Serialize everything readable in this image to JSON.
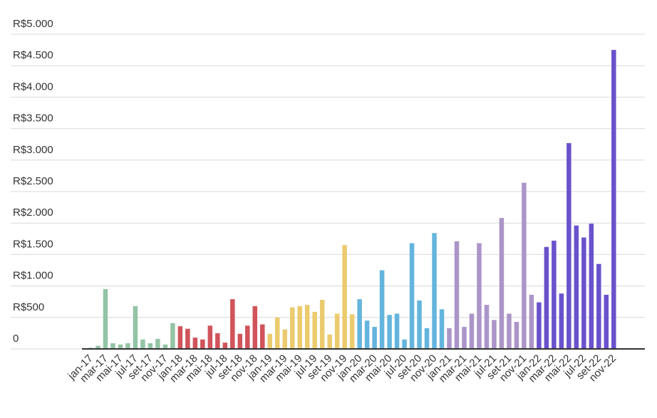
{
  "chart_data": {
    "type": "bar",
    "categories": [
      "jan-17",
      null,
      "mar-17",
      null,
      "mai-17",
      null,
      "jul-17",
      null,
      "set-17",
      null,
      "nov-17",
      null,
      "jan-18",
      null,
      "mar-18",
      null,
      "mai-18",
      null,
      "jul-18",
      null,
      "set-18",
      null,
      "nov-18",
      null,
      "jan-19",
      null,
      "mar-19",
      null,
      "mai-19",
      null,
      "jul-19",
      null,
      "set-19",
      null,
      "nov-19",
      null,
      "jan-20",
      null,
      "mar-20",
      null,
      "mai-20",
      null,
      "jul-20",
      null,
      "set-20",
      null,
      "nov-20",
      null,
      "jan-21",
      null,
      "mar-21",
      null,
      "mai-21",
      null,
      "jul-21",
      null,
      "set-21",
      null,
      "nov-21",
      null,
      "jan-22",
      null,
      "mar-22",
      null,
      "mai-22",
      null,
      "jul-22",
      null,
      "set-22",
      null,
      "nov-22"
    ],
    "values": [
      20,
      50,
      950,
      90,
      70,
      90,
      680,
      150,
      90,
      160,
      70,
      410,
      360,
      320,
      180,
      150,
      370,
      250,
      100,
      790,
      240,
      370,
      680,
      390,
      240,
      500,
      310,
      660,
      680,
      700,
      590,
      780,
      230,
      560,
      1650,
      550,
      790,
      450,
      350,
      1250,
      540,
      560,
      150,
      1680,
      770,
      330,
      1840,
      630,
      330,
      1710,
      350,
      560,
      1680,
      700,
      460,
      2080,
      560,
      430,
      2640,
      860,
      740,
      1620,
      1720,
      880,
      3270,
      1960,
      1770,
      1990,
      1350,
      860,
      4750
    ],
    "colors": [
      "#93c4a5",
      "#93c4a5",
      "#93c4a5",
      "#93c4a5",
      "#93c4a5",
      "#93c4a5",
      "#93c4a5",
      "#93c4a5",
      "#93c4a5",
      "#93c4a5",
      "#93c4a5",
      "#93c4a5",
      "#d0545a",
      "#d0545a",
      "#d0545a",
      "#d0545a",
      "#d0545a",
      "#d0545a",
      "#d0545a",
      "#d0545a",
      "#d0545a",
      "#d0545a",
      "#d0545a",
      "#d0545a",
      "#ebcb6e",
      "#ebcb6e",
      "#ebcb6e",
      "#ebcb6e",
      "#ebcb6e",
      "#ebcb6e",
      "#ebcb6e",
      "#ebcb6e",
      "#ebcb6e",
      "#ebcb6e",
      "#ebcb6e",
      "#ebcb6e",
      "#64b5dd",
      "#64b5dd",
      "#64b5dd",
      "#64b5dd",
      "#64b5dd",
      "#64b5dd",
      "#64b5dd",
      "#64b5dd",
      "#64b5dd",
      "#64b5dd",
      "#64b5dd",
      "#64b5dd",
      "#ab95c8",
      "#ab95c8",
      "#ab95c8",
      "#ab95c8",
      "#ab95c8",
      "#ab95c8",
      "#ab95c8",
      "#ab95c8",
      "#ab95c8",
      "#ab95c8",
      "#ab95c8",
      "#ab95c8",
      "#6a52cc",
      "#6a52cc",
      "#6a52cc",
      "#6a52cc",
      "#6a52cc",
      "#6a52cc",
      "#6a52cc",
      "#6a52cc",
      "#6a52cc",
      "#6a52cc",
      "#6a52cc"
    ],
    "ylim": [
      0,
      5000
    ],
    "yticks": [
      0,
      {
        "value": 500,
        "label": "R$500"
      },
      {
        "value": 1000,
        "label": "R$1.000"
      },
      {
        "value": 1500,
        "label": "R$1.500"
      },
      {
        "value": 2000,
        "label": "R$2.000"
      },
      {
        "value": 2500,
        "label": "R$2.500"
      },
      {
        "value": 3000,
        "label": "R$3.000"
      },
      {
        "value": 3500,
        "label": "R$3.500"
      },
      {
        "value": 4000,
        "label": "R$4.000"
      },
      {
        "value": 4500,
        "label": "R$4.500"
      },
      {
        "value": 5000,
        "label": "R$5.000"
      }
    ],
    "grid": true
  }
}
